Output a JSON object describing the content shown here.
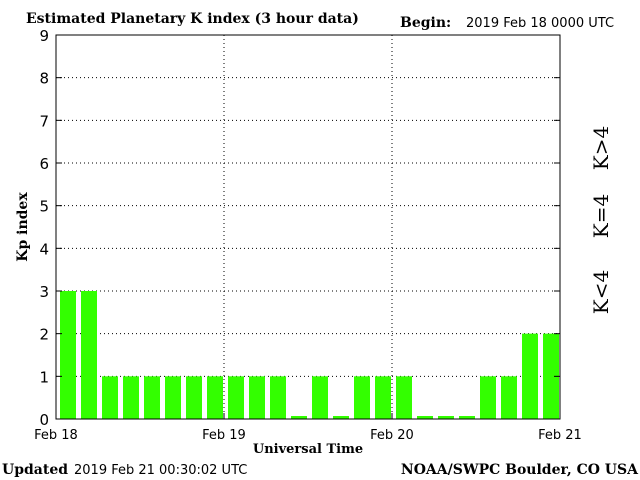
{
  "header": {
    "title": "Estimated Planetary K index (3 hour data)",
    "begin_label": "Begin:",
    "begin_value": "2019 Feb 18 0000 UTC"
  },
  "footer": {
    "updated_label": "Updated",
    "updated_value": "2019 Feb 21 00:30:02 UTC",
    "credit": "NOAA/SWPC Boulder, CO USA"
  },
  "legend": {
    "storm": "K>4",
    "active": "K=4",
    "quiet": "K<4"
  },
  "colors": {
    "quiet": "#33ff00",
    "active": "#ffcc00",
    "storm": "#ff3300",
    "grid": "#000000"
  },
  "chart_data": {
    "type": "bar",
    "title": "Estimated Planetary K index (3 hour data)",
    "xlabel": "Universal Time",
    "ylabel": "Kp index",
    "ylim": [
      0,
      9
    ],
    "yticks": [
      "0",
      "1",
      "2",
      "3",
      "4",
      "5",
      "6",
      "7",
      "8",
      "9"
    ],
    "xticks": [
      "Feb 18",
      "Feb 19",
      "Feb 20",
      "Feb 21"
    ],
    "grid": true,
    "interval": "3 hour",
    "values": [
      3,
      3,
      1,
      1,
      1,
      1,
      1,
      1,
      1,
      1,
      1,
      0,
      1,
      0,
      1,
      1,
      1,
      0,
      0,
      0,
      1,
      1,
      2,
      2
    ]
  }
}
